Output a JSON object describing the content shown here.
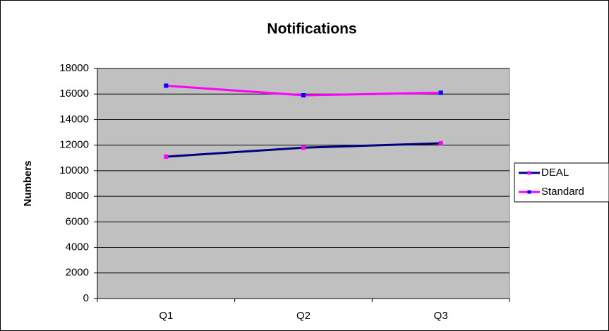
{
  "chart_data": {
    "type": "line",
    "title": "Notifications",
    "y_label": "Numbers",
    "categories": [
      "Q1",
      "Q2",
      "Q3"
    ],
    "series": [
      {
        "name": "DEAL",
        "color": "#000080",
        "marker_color": "#ff00ff",
        "values": [
          11100,
          11800,
          12150
        ]
      },
      {
        "name": "Standard",
        "color": "#ff00ff",
        "marker_color": "#0000ff",
        "values": [
          16650,
          15900,
          16100
        ]
      }
    ],
    "ylim": [
      0,
      18000
    ],
    "yticks": [
      0,
      2000,
      4000,
      6000,
      8000,
      10000,
      12000,
      14000,
      16000,
      18000
    ],
    "grid": true,
    "legend": "right"
  }
}
